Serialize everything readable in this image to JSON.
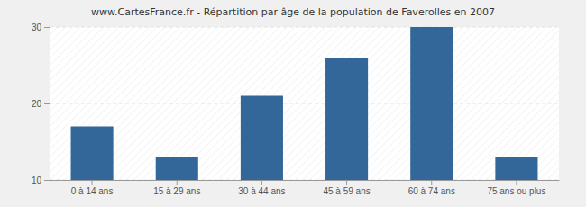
{
  "chart_data": {
    "type": "bar",
    "title": "www.CartesFrance.fr - Répartition par âge de la population de Faverolles en 2007",
    "categories": [
      "0 à 14 ans",
      "15 à 29 ans",
      "30 à 44 ans",
      "45 à 59 ans",
      "60 à 74 ans",
      "75 ans ou plus"
    ],
    "values": [
      17,
      13,
      21,
      26,
      30,
      13
    ],
    "color": "#336699",
    "ylim": [
      10,
      30
    ],
    "yticks": [
      10,
      20,
      30
    ],
    "grid": true
  }
}
